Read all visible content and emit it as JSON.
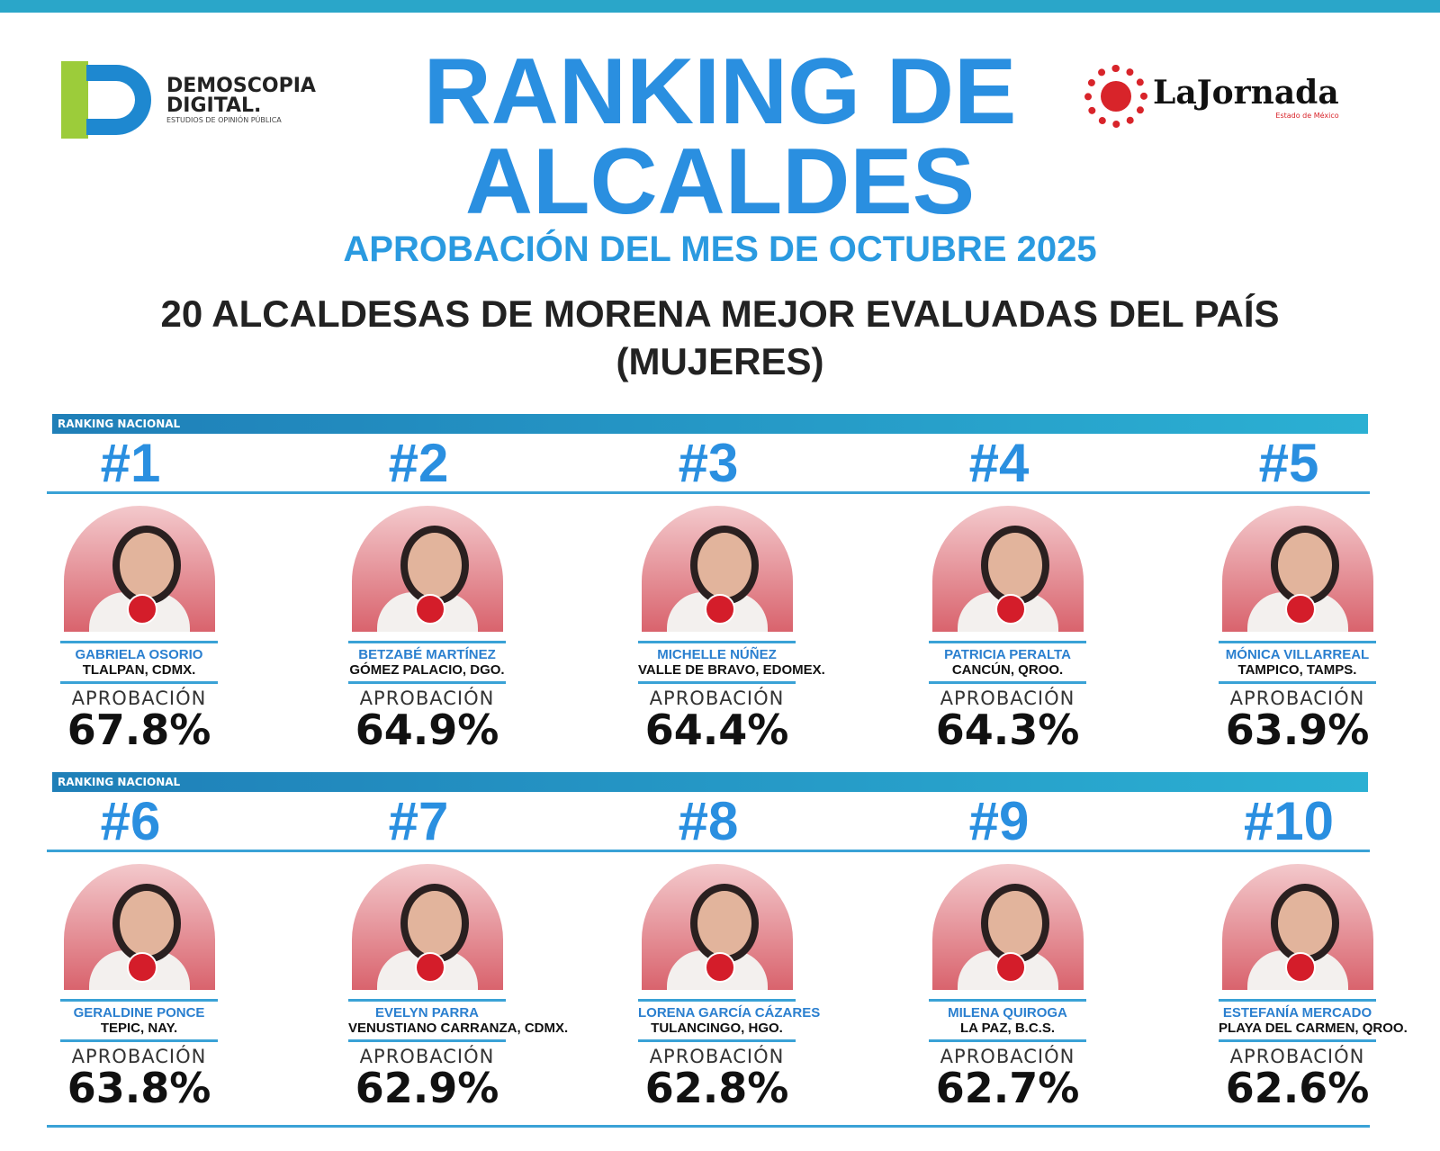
{
  "header": {
    "left_logo": {
      "name": "DEMOSCOPIA",
      "name2": "DIGITAL.",
      "tagline": "ESTUDIOS DE OPINIÓN PÚBLICA"
    },
    "right_logo": {
      "name": "LaJornada",
      "tagline": "Estado de México"
    },
    "title_line1": "RANKING DE",
    "title_line2": "ALCALDES",
    "subtitle": "APROBACIÓN DEL MES DE OCTUBRE 2025",
    "heading": "20 ALCALDESAS DE MORENA MEJOR EVALUADAS DEL PAÍS",
    "heading2": "(MUJERES)"
  },
  "ribbon_label": "RANKING NACIONAL",
  "approval_label": "APROBACIÓN",
  "colors": {
    "accent": "#2a8fe0",
    "ribbon": "#2aa6c9",
    "badge": "#d41d2a"
  },
  "rows": [
    [
      {
        "rank": "#1",
        "name": "GABRIELA OSORIO",
        "city": "TLALPAN, CDMX.",
        "approval": "67.8%"
      },
      {
        "rank": "#2",
        "name": "BETZABÉ MARTÍNEZ",
        "city": "GÓMEZ PALACIO, DGO.",
        "approval": "64.9%"
      },
      {
        "rank": "#3",
        "name": "MICHELLE NÚÑEZ",
        "city": "VALLE DE BRAVO, EDOMEX.",
        "approval": "64.4%"
      },
      {
        "rank": "#4",
        "name": "PATRICIA PERALTA",
        "city": "CANCÚN, QROO.",
        "approval": "64.3%"
      },
      {
        "rank": "#5",
        "name": "MÓNICA VILLARREAL",
        "city": "TAMPICO, TAMPS.",
        "approval": "63.9%"
      }
    ],
    [
      {
        "rank": "#6",
        "name": "GERALDINE PONCE",
        "city": "TEPIC, NAY.",
        "approval": "63.8%"
      },
      {
        "rank": "#7",
        "name": "EVELYN PARRA",
        "city": "VENUSTIANO CARRANZA, CDMX.",
        "approval": "62.9%"
      },
      {
        "rank": "#8",
        "name": "LORENA GARCÍA CÁZARES",
        "city": "TULANCINGO, HGO.",
        "approval": "62.8%"
      },
      {
        "rank": "#9",
        "name": "MILENA QUIROGA",
        "city": "LA PAZ, B.C.S.",
        "approval": "62.7%"
      },
      {
        "rank": "#10",
        "name": "ESTEFANÍA MERCADO",
        "city": "PLAYA DEL CARMEN, QROO.",
        "approval": "62.6%"
      }
    ]
  ]
}
